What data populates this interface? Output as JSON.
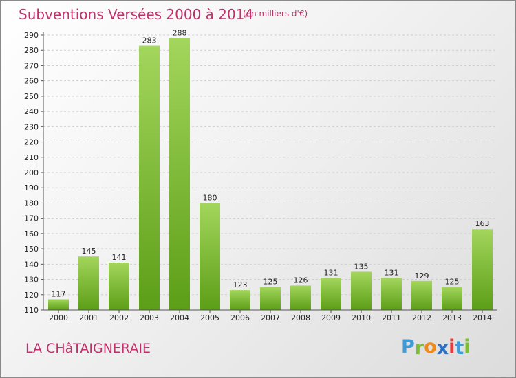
{
  "header": {
    "title": "Subventions Versées 2000 à 2014",
    "unit": "(en milliers d'€)"
  },
  "footer": {
    "commune": "LA CHâTAIGNERAIE",
    "logo": [
      "P",
      "r",
      "o",
      "x",
      "i",
      "t",
      "i"
    ],
    "logo_colors": [
      "#3f9ad8",
      "#7cbf32",
      "#ee8a1a",
      "#2f6fc0",
      "#e23c3c",
      "#3f9ad8",
      "#7cbf32"
    ]
  },
  "colors": {
    "bar_light": "#a3d65c",
    "bar_dark": "#5c9e17",
    "grid": "#cfcfcf",
    "text": "#222222"
  },
  "chart_data": {
    "type": "bar",
    "title": "Subventions Versées 2000 à 2014",
    "subtitle": "(en milliers d'€)",
    "categories": [
      "2000",
      "2001",
      "2002",
      "2003",
      "2004",
      "2005",
      "2006",
      "2007",
      "2008",
      "2009",
      "2010",
      "2011",
      "2012",
      "2013",
      "2014"
    ],
    "values": [
      117,
      145,
      141,
      283,
      288,
      180,
      123,
      125,
      126,
      131,
      135,
      131,
      129,
      125,
      163
    ],
    "ylim": [
      110,
      290
    ],
    "yticks": [
      110,
      120,
      130,
      140,
      150,
      160,
      170,
      180,
      190,
      200,
      210,
      220,
      230,
      240,
      250,
      260,
      270,
      280,
      290
    ],
    "grid": true,
    "xlabel": "",
    "ylabel": ""
  }
}
